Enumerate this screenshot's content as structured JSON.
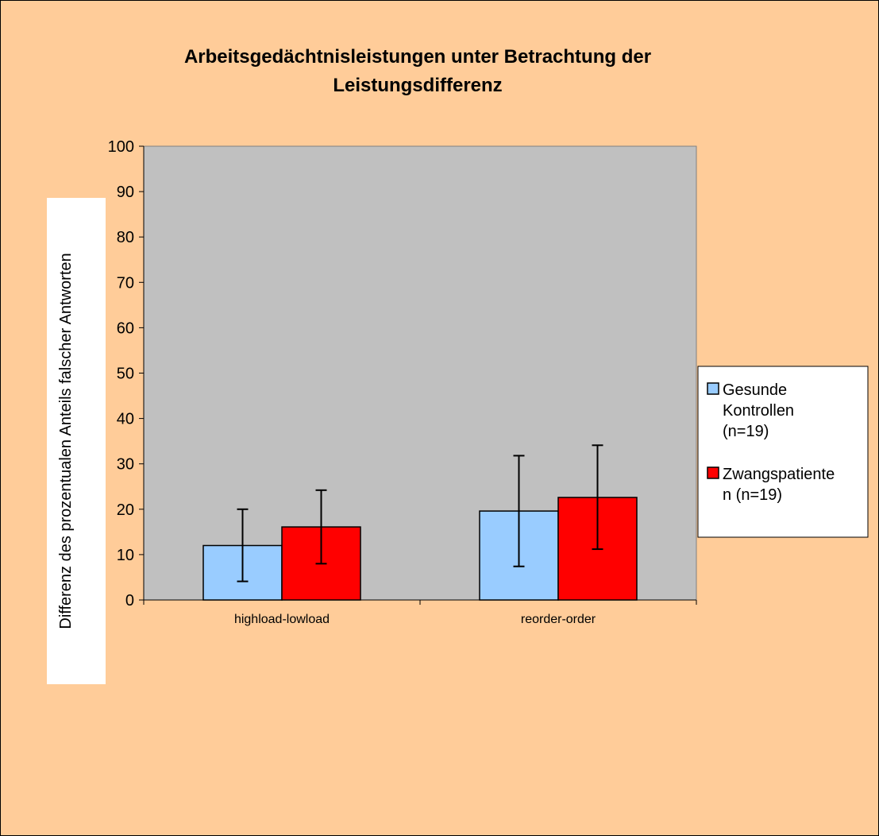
{
  "chart_data": {
    "type": "bar",
    "title_lines": [
      "Arbeitsgedächtnisleistungen unter Betrachtung der",
      "Leistungsdifferenz"
    ],
    "ylabel": "Differenz des prozentualen Anteils falscher Antworten",
    "xlabel": "",
    "categories": [
      "highload-lowload",
      "reorder-order"
    ],
    "ylim": [
      0,
      100
    ],
    "yticks": [
      0,
      10,
      20,
      30,
      40,
      50,
      60,
      70,
      80,
      90,
      100
    ],
    "grid": false,
    "legend_position": "right",
    "series": [
      {
        "name": "Gesunde Kontrollen (n=19)",
        "legend_lines": [
          "Gesunde",
          "Kontrollen",
          "(n=19)"
        ],
        "color": "#99ccff",
        "values": [
          12.0,
          19.6
        ],
        "error_low": [
          4.1,
          7.4
        ],
        "error_high": [
          20.0,
          31.8
        ]
      },
      {
        "name": "Zwangspatienten (n=19)",
        "legend_lines": [
          "Zwangspatiente",
          "n (n=19)"
        ],
        "color": "#ff0000",
        "values": [
          16.1,
          22.6
        ],
        "error_low": [
          8.0,
          11.2
        ],
        "error_high": [
          24.2,
          34.1
        ]
      }
    ],
    "colors": {
      "chart_background": "#ffcc99",
      "plot_background": "#c0c0c0",
      "legend_background": "#ffffff"
    }
  }
}
